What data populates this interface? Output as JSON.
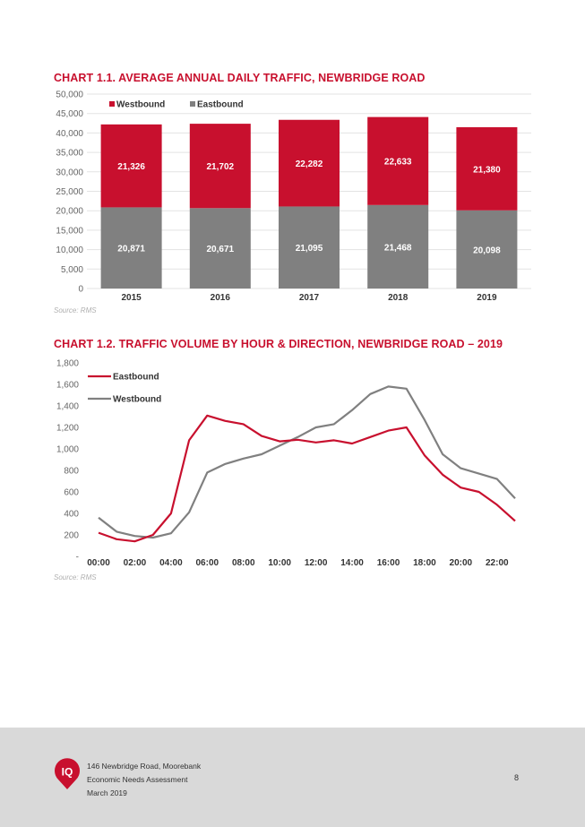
{
  "colors": {
    "red": "#c8102e",
    "grey": "#808080",
    "footer_bg": "#d9d9d9"
  },
  "chart1": {
    "title": "CHART 1.1. AVERAGE ANNUAL DAILY TRAFFIC, NEWBRIDGE ROAD",
    "source": "Source: RMS",
    "chart_data": {
      "type": "bar",
      "stacked": true,
      "categories": [
        "2015",
        "2016",
        "2017",
        "2018",
        "2019"
      ],
      "series": [
        {
          "name": "Westbound",
          "color": "#c8102e",
          "values": [
            21326,
            21702,
            22282,
            22633,
            21380
          ],
          "labels": [
            "21,326",
            "21,702",
            "22,282",
            "22,633",
            "21,380"
          ]
        },
        {
          "name": "Eastbound",
          "color": "#808080",
          "values": [
            20871,
            20671,
            21095,
            21468,
            20098
          ],
          "labels": [
            "20,871",
            "20,671",
            "21,095",
            "21,468",
            "20,098"
          ]
        }
      ],
      "ylim": [
        0,
        50000
      ],
      "yticks": [
        0,
        5000,
        10000,
        15000,
        20000,
        25000,
        30000,
        35000,
        40000,
        45000,
        50000
      ],
      "ytick_labels": [
        "0",
        "5,000",
        "10,000",
        "15,000",
        "20,000",
        "25,000",
        "30,000",
        "35,000",
        "40,000",
        "45,000",
        "50,000"
      ],
      "grid": true,
      "legend": "top-left"
    }
  },
  "chart2": {
    "title": "CHART 1.2. TRAFFIC VOLUME BY HOUR & DIRECTION, NEWBRIDGE ROAD – 2019",
    "source": "Source: RMS",
    "chart_data": {
      "type": "line",
      "x": [
        0,
        1,
        2,
        3,
        4,
        5,
        6,
        7,
        8,
        9,
        10,
        11,
        12,
        13,
        14,
        15,
        16,
        17,
        18,
        19,
        20,
        21,
        22,
        23
      ],
      "xtick_labels": [
        "00:00",
        "02:00",
        "04:00",
        "06:00",
        "08:00",
        "10:00",
        "12:00",
        "14:00",
        "16:00",
        "18:00",
        "20:00",
        "22:00"
      ],
      "series": [
        {
          "name": "Eastbound",
          "color": "#c8102e",
          "values": [
            220,
            160,
            140,
            200,
            400,
            1080,
            1310,
            1260,
            1230,
            1120,
            1070,
            1085,
            1060,
            1080,
            1050,
            1110,
            1170,
            1200,
            940,
            760,
            640,
            600,
            480,
            330
          ]
        },
        {
          "name": "Westbound",
          "color": "#808080",
          "values": [
            360,
            230,
            190,
            175,
            215,
            410,
            780,
            860,
            910,
            950,
            1030,
            1110,
            1200,
            1230,
            1360,
            1510,
            1580,
            1560,
            1270,
            950,
            820,
            770,
            720,
            540
          ]
        }
      ],
      "ylim": [
        0,
        1800
      ],
      "yticks": [
        0,
        200,
        400,
        600,
        800,
        1000,
        1200,
        1400,
        1600,
        1800
      ],
      "ytick_labels": [
        "-",
        "200",
        "400",
        "600",
        "800",
        "1,000",
        "1,200",
        "1,400",
        "1,600",
        "1,800"
      ],
      "grid": false,
      "legend": "top-left"
    }
  },
  "footer": {
    "logo_text": "IQ",
    "lines": [
      "146 Newbridge Road, Moorebank",
      "Economic Needs Assessment",
      "March 2019"
    ],
    "page_number": "8"
  }
}
